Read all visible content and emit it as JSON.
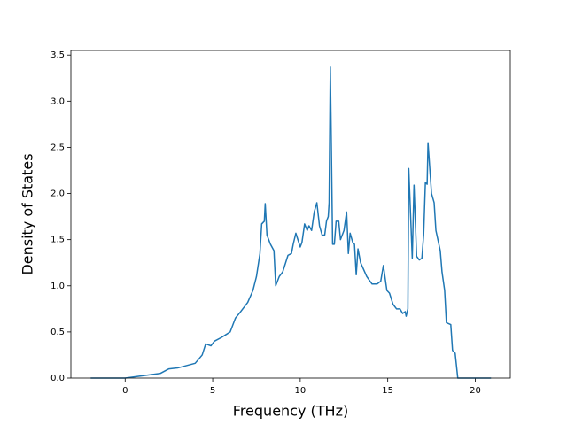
{
  "chart_data": {
    "type": "line",
    "xlabel": "Frequency (THz)",
    "ylabel": "Density of States",
    "xlim": [
      -3.1,
      22.0
    ],
    "ylim": [
      0,
      3.55
    ],
    "xticks": [
      0,
      5,
      10,
      15,
      20
    ],
    "yticks": [
      {
        "value": 0,
        "label": "0.0"
      },
      {
        "value": 0.5,
        "label": "0.5"
      },
      {
        "value": 1,
        "label": "1.0"
      },
      {
        "value": 1.5,
        "label": "1.5"
      },
      {
        "value": 2,
        "label": "2.0"
      },
      {
        "value": 2.5,
        "label": "2.5"
      },
      {
        "value": 3,
        "label": "3.0"
      },
      {
        "value": 3.5,
        "label": "3.5"
      }
    ],
    "color": "#1f77b4",
    "x": [
      -1.97,
      0,
      2,
      2.5,
      3,
      4,
      4.4,
      4.6,
      4.9,
      5.1,
      5.5,
      6,
      6.3,
      6.6,
      7.0,
      7.3,
      7.5,
      7.7,
      7.8,
      7.95,
      8.0,
      8.1,
      8.3,
      8.5,
      8.6,
      8.8,
      9.0,
      9.3,
      9.5,
      9.6,
      9.75,
      9.9,
      10.0,
      10.1,
      10.25,
      10.4,
      10.5,
      10.65,
      10.8,
      10.95,
      11.1,
      11.25,
      11.4,
      11.5,
      11.6,
      11.65,
      11.72,
      11.85,
      11.95,
      12.05,
      12.2,
      12.3,
      12.5,
      12.65,
      12.75,
      12.85,
      13.0,
      13.1,
      13.2,
      13.3,
      13.45,
      13.8,
      14.1,
      14.4,
      14.6,
      14.75,
      14.95,
      15.1,
      15.3,
      15.5,
      15.7,
      15.85,
      16.0,
      16.05,
      16.15,
      16.2,
      16.4,
      16.5,
      16.65,
      16.8,
      16.95,
      17.05,
      17.15,
      17.25,
      17.3,
      17.5,
      17.65,
      17.75,
      18.0,
      18.1,
      18.25,
      18.35,
      18.6,
      18.7,
      18.85,
      19.0,
      20.9
    ],
    "values": [
      0,
      0,
      0.05,
      0.1,
      0.11,
      0.16,
      0.25,
      0.37,
      0.35,
      0.4,
      0.44,
      0.5,
      0.65,
      0.72,
      0.82,
      0.95,
      1.1,
      1.35,
      1.67,
      1.7,
      1.89,
      1.55,
      1.45,
      1.38,
      1.0,
      1.1,
      1.15,
      1.33,
      1.35,
      1.45,
      1.57,
      1.48,
      1.42,
      1.47,
      1.67,
      1.6,
      1.65,
      1.6,
      1.8,
      1.9,
      1.65,
      1.55,
      1.55,
      1.7,
      1.75,
      1.9,
      3.37,
      1.45,
      1.45,
      1.7,
      1.7,
      1.5,
      1.6,
      1.8,
      1.35,
      1.57,
      1.47,
      1.45,
      1.12,
      1.4,
      1.25,
      1.1,
      1.02,
      1.02,
      1.05,
      1.22,
      0.95,
      0.92,
      0.8,
      0.75,
      0.75,
      0.7,
      0.72,
      0.67,
      0.75,
      2.27,
      1.3,
      2.09,
      1.32,
      1.28,
      1.3,
      1.55,
      2.12,
      2.1,
      2.55,
      2.0,
      1.9,
      1.6,
      1.38,
      1.15,
      0.95,
      0.6,
      0.58,
      0.3,
      0.27,
      0,
      0
    ]
  }
}
